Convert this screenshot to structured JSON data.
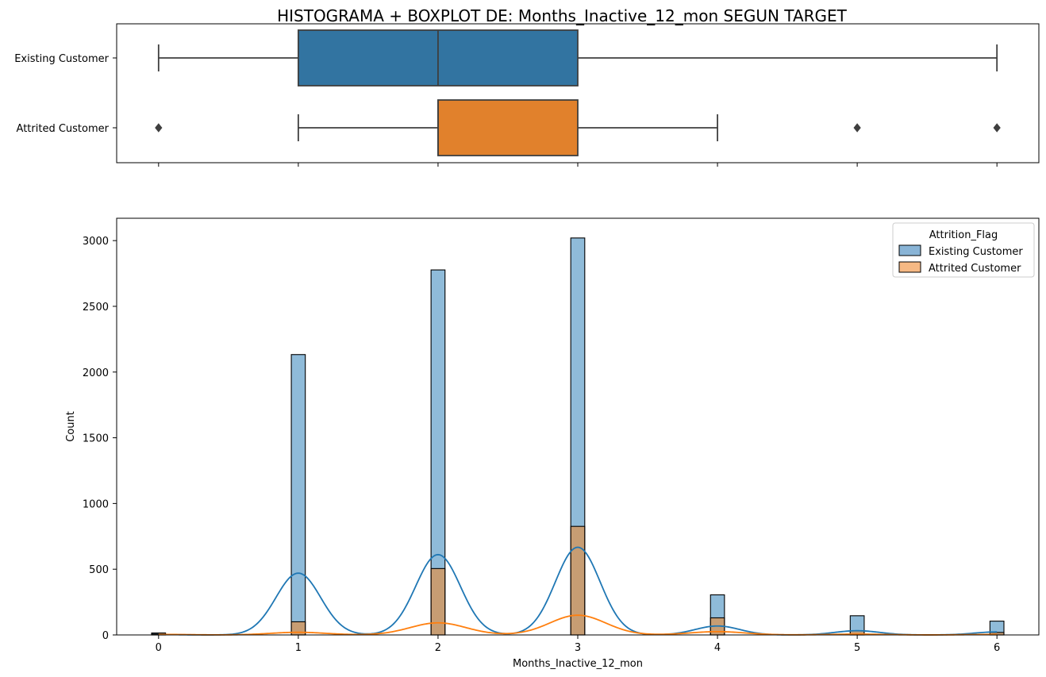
{
  "figure": {
    "title": "HISTOGRAMA + BOXPLOT DE: Months_Inactive_12_mon SEGUN TARGET"
  },
  "chart_data": [
    {
      "type": "boxplot",
      "orientation": "horizontal",
      "categories": [
        "Existing Customer",
        "Attrited Customer"
      ],
      "xlim": [
        -0.3,
        6.3
      ],
      "xticks": [
        0,
        1,
        2,
        3,
        4,
        5,
        6
      ],
      "xtick_labels_shown": false,
      "colors": [
        "#3274a1",
        "#e1812c"
      ],
      "edge_color": "#3f3f3f",
      "boxes": [
        {
          "category": "Existing Customer",
          "whisker_low": 0,
          "q1": 1,
          "median": 2,
          "q3": 3,
          "whisker_high": 6,
          "outliers": []
        },
        {
          "category": "Attrited Customer",
          "whisker_low": 1,
          "q1": 2,
          "median": 2,
          "q3": 3,
          "whisker_high": 4,
          "outliers": [
            0,
            5,
            6
          ]
        }
      ]
    },
    {
      "type": "histogram",
      "xlabel": "Months_Inactive_12_mon",
      "ylabel": "Count",
      "xlim": [
        -0.3,
        6.3
      ],
      "ylim": [
        0,
        3170
      ],
      "xticks": [
        0,
        1,
        2,
        3,
        4,
        5,
        6
      ],
      "yticks": [
        0,
        500,
        1000,
        1500,
        2000,
        2500,
        3000
      ],
      "bin_width": 0.1,
      "legend": {
        "title": "Attrition_Flag",
        "position": "upper right",
        "entries": [
          {
            "label": "Existing Customer",
            "color": "#89b4d6"
          },
          {
            "label": "Attrited Customer",
            "color": "#f6b984"
          }
        ]
      },
      "series": [
        {
          "name": "Existing Customer",
          "fill": "#1f77b4",
          "line_color": "#1f77b4",
          "bars": [
            {
              "x": 0,
              "count": 15
            },
            {
              "x": 1,
              "count": 2133
            },
            {
              "x": 2,
              "count": 2777
            },
            {
              "x": 3,
              "count": 3020
            },
            {
              "x": 4,
              "count": 305
            },
            {
              "x": 5,
              "count": 146
            },
            {
              "x": 6,
              "count": 105
            }
          ],
          "kde_amplitudes": [
            3,
            470,
            611,
            667,
            68,
            32,
            23
          ],
          "kde_bandwidth": 0.16
        },
        {
          "name": "Attrited Customer",
          "fill": "#ff7f0e",
          "line_color": "#ff7f0e",
          "bars": [
            {
              "x": 0,
              "count": 7
            },
            {
              "x": 1,
              "count": 100
            },
            {
              "x": 2,
              "count": 505
            },
            {
              "x": 3,
              "count": 826
            },
            {
              "x": 4,
              "count": 130
            },
            {
              "x": 5,
              "count": 32
            },
            {
              "x": 6,
              "count": 19
            }
          ],
          "kde_amplitudes": [
            4,
            20,
            92,
            150,
            25,
            6,
            4
          ],
          "kde_bandwidth": 0.2
        }
      ]
    }
  ]
}
